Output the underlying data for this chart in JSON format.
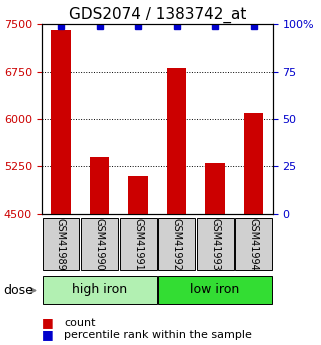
{
  "title": "GDS2074 / 1383742_at",
  "samples": [
    "GSM41989",
    "GSM41990",
    "GSM41991",
    "GSM41992",
    "GSM41993",
    "GSM41994"
  ],
  "counts": [
    7400,
    5400,
    5100,
    6800,
    5300,
    6100
  ],
  "percentile_ranks": [
    99,
    99,
    99,
    99,
    99,
    99
  ],
  "ymin": 4500,
  "ymax": 7500,
  "yticks": [
    4500,
    5250,
    6000,
    6750,
    7500
  ],
  "right_yticks": [
    0,
    25,
    50,
    75,
    100
  ],
  "right_yticklabels": [
    "0",
    "25",
    "50",
    "75",
    "100%"
  ],
  "groups": [
    {
      "label": "high iron",
      "samples": [
        0,
        1,
        2
      ],
      "color": "#b2f0b2"
    },
    {
      "label": "low iron",
      "samples": [
        3,
        4,
        5
      ],
      "color": "#33dd33"
    }
  ],
  "bar_color": "#cc0000",
  "dot_color": "#0000cc",
  "left_tick_color": "#cc0000",
  "right_tick_color": "#0000cc",
  "title_fontsize": 11,
  "tick_fontsize": 8,
  "sample_label_fontsize": 7,
  "group_label_fontsize": 9,
  "dose_label": "dose",
  "legend_count": "count",
  "legend_percentile": "percentile rank within the sample"
}
